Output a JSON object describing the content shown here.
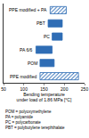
{
  "chart_data": {
    "type": "bar",
    "orientation": "horizontal",
    "color": "#2f6db5",
    "series": [
      {
        "name": "PPE modified + PA",
        "values": [
          165,
          205
        ],
        "marker": "hatched"
      },
      {
        "name": "PBT",
        "values": [
          160,
          195
        ],
        "marker": "solid"
      },
      {
        "name": "PC",
        "values": [
          170,
          195
        ],
        "marker": "solid"
      },
      {
        "name": "PA 6/6",
        "values": [
          130,
          170
        ],
        "marker": "solid"
      },
      {
        "name": "POM",
        "values": [
          140,
          175
        ],
        "marker": "solid"
      },
      {
        "name": "PPE modified",
        "values": [
          140,
          235
        ],
        "marker": "hatched"
      }
    ],
    "x_label": [
      "Bending temperature",
      "under load of 1.86 MPa [°C]"
    ],
    "xlim": [
      50,
      250
    ],
    "xticks": [
      50,
      100,
      150,
      200,
      250
    ],
    "tick_labels": "x",
    "grid": false,
    "annotations": [
      "POM = polyoxymethylene",
      "PA = polyamide",
      "PC = polycarbonate",
      "PBT = polybutylene terephthalate"
    ]
  }
}
